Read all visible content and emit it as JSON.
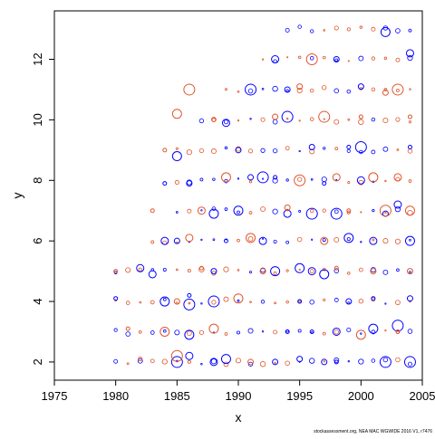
{
  "chart_data": {
    "type": "scatter",
    "title": "",
    "xlabel": "x",
    "ylabel": "y",
    "xlim": [
      1975,
      2005
    ],
    "ylim": [
      1.4,
      13.6
    ],
    "x_ticks": [
      "1975",
      "1980",
      "1985",
      "1990",
      "1995",
      "2000",
      "2005"
    ],
    "y_ticks": [
      "2",
      "4",
      "6",
      "8",
      "10",
      "12"
    ],
    "grid": false,
    "legend": "none",
    "colors": {
      "positive": "#0000ff",
      "negative": "#e0552a"
    },
    "series": [
      {
        "marker": "open-circle",
        "color": "#0000ff",
        "points": [
          [
            1980,
            4.1
          ],
          [
            1982,
            5.1
          ],
          [
            1983,
            4.9
          ],
          [
            1984,
            6.0
          ],
          [
            1984,
            7.9
          ],
          [
            1984,
            4.0
          ],
          [
            1985,
            8.8
          ],
          [
            1985,
            6.0
          ],
          [
            1985,
            2.0
          ],
          [
            1986,
            3.9
          ],
          [
            1986,
            2.2
          ],
          [
            1986,
            4.2
          ],
          [
            1986,
            2.9
          ],
          [
            1986,
            7.9
          ],
          [
            1988,
            6.9
          ],
          [
            1988,
            5.0
          ],
          [
            1988,
            4.0
          ],
          [
            1988,
            2.0
          ],
          [
            1989,
            9.9
          ],
          [
            1989,
            6.0
          ],
          [
            1989,
            2.1
          ],
          [
            1990,
            7.0
          ],
          [
            1990,
            9.0
          ],
          [
            1991,
            8.1
          ],
          [
            1991,
            11.0
          ],
          [
            1992,
            8.1
          ],
          [
            1992,
            6.0
          ],
          [
            1993,
            12.0
          ],
          [
            1993,
            8.1
          ],
          [
            1993,
            5.0
          ],
          [
            1993,
            2.0
          ],
          [
            1994,
            11.0
          ],
          [
            1994,
            10.1
          ],
          [
            1994,
            6.9
          ],
          [
            1994,
            3.0
          ],
          [
            1995,
            4.0
          ],
          [
            1995,
            5.1
          ],
          [
            1995,
            2.1
          ],
          [
            1996,
            9.1
          ],
          [
            1996,
            6.9
          ],
          [
            1996,
            5.0
          ],
          [
            1996,
            3.0
          ],
          [
            1997,
            7.9
          ],
          [
            1997,
            4.9
          ],
          [
            1997,
            2.0
          ],
          [
            1998,
            12.0
          ],
          [
            1998,
            6.9
          ],
          [
            1998,
            3.0
          ],
          [
            1998,
            2.0
          ],
          [
            1999,
            9.1
          ],
          [
            1999,
            6.1
          ],
          [
            1999,
            4.0
          ],
          [
            2000,
            11.1
          ],
          [
            2000,
            9.1
          ],
          [
            2000,
            8.0
          ],
          [
            2001,
            6.0
          ],
          [
            2001,
            4.1
          ],
          [
            2001,
            3.1
          ],
          [
            2002,
            12.9
          ],
          [
            2002,
            6.9
          ],
          [
            2002,
            2.0
          ],
          [
            2003,
            3.2
          ],
          [
            2003,
            7.2
          ],
          [
            2004,
            12.2
          ],
          [
            2004,
            9.1
          ],
          [
            2004,
            6.0
          ],
          [
            2004,
            4.1
          ],
          [
            2004,
            2.0
          ]
        ]
      },
      {
        "marker": "open-circle",
        "color": "#e0552a",
        "points": [
          [
            1980,
            5.0
          ],
          [
            1981,
            3.1
          ],
          [
            1982,
            2.1
          ],
          [
            1983,
            7.0
          ],
          [
            1984,
            9.0
          ],
          [
            1984,
            3.0
          ],
          [
            1985,
            10.2
          ],
          [
            1985,
            4.0
          ],
          [
            1985,
            2.2
          ],
          [
            1986,
            11.0
          ],
          [
            1986,
            6.1
          ],
          [
            1987,
            7.0
          ],
          [
            1987,
            5.1
          ],
          [
            1988,
            10.0
          ],
          [
            1988,
            3.1
          ],
          [
            1989,
            8.1
          ],
          [
            1990,
            4.1
          ],
          [
            1991,
            6.1
          ],
          [
            1991,
            2.0
          ],
          [
            1992,
            5.0
          ],
          [
            1993,
            10.1
          ],
          [
            1994,
            7.1
          ],
          [
            1995,
            11.1
          ],
          [
            1995,
            8.0
          ],
          [
            1996,
            12.0
          ],
          [
            1997,
            10.1
          ],
          [
            1997,
            6.0
          ],
          [
            1998,
            8.1
          ],
          [
            1998,
            5.1
          ],
          [
            1999,
            7.0
          ],
          [
            2000,
            10.1
          ],
          [
            2000,
            2.9
          ],
          [
            2001,
            8.1
          ],
          [
            2001,
            5.0
          ],
          [
            2002,
            10.9
          ],
          [
            2002,
            7.0
          ],
          [
            2003,
            11.0
          ],
          [
            2003,
            8.1
          ],
          [
            2003,
            3.0
          ],
          [
            2004,
            10.1
          ],
          [
            2004,
            7.0
          ],
          [
            2004,
            5.0
          ]
        ]
      }
    ]
  },
  "footnote": "stockassessment.org, NEA MAC WGWIDE 2016 V1, r7476"
}
